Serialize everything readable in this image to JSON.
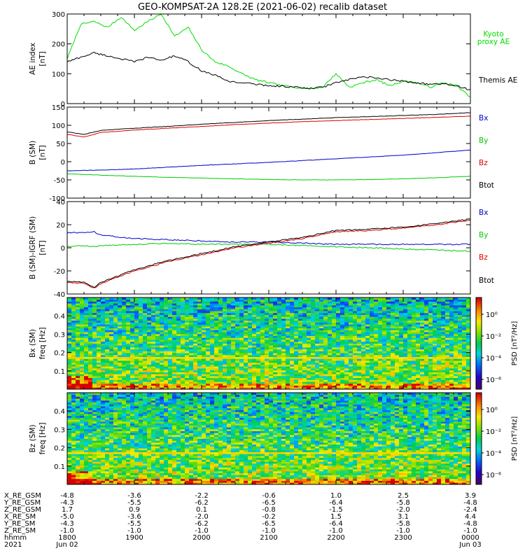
{
  "title": "GEO-KOMPSAT-2A 128.2E (2021-06-02) recalib dataset",
  "colors": {
    "bx": "#0000cc",
    "by": "#00cc00",
    "bz": "#dd0000",
    "btot": "#000000",
    "kyoto": "#00dd00",
    "themis": "#000000"
  },
  "chart_data": [
    {
      "id": "ae",
      "type": "line",
      "ylabel": "AE index",
      "yunit": "[nT]",
      "ylim": [
        0,
        300
      ],
      "yticks": [
        "0",
        "100",
        "200",
        "300"
      ],
      "x_hours": [
        18.0,
        18.2,
        18.4,
        18.6,
        18.8,
        19.0,
        19.2,
        19.4,
        19.6,
        19.8,
        20.0,
        20.2,
        20.4,
        20.6,
        20.8,
        21.0,
        21.2,
        21.4,
        21.6,
        21.8,
        22.0,
        22.2,
        22.4,
        22.6,
        22.8,
        23.0,
        23.2,
        23.4,
        23.6,
        23.8,
        24.0
      ],
      "series": [
        {
          "name": "Kyoto proxy AE",
          "color": "#00dd00",
          "values": [
            150,
            265,
            275,
            255,
            290,
            245,
            275,
            300,
            225,
            255,
            180,
            140,
            125,
            100,
            80,
            70,
            60,
            55,
            50,
            55,
            100,
            55,
            70,
            80,
            60,
            75,
            70,
            55,
            70,
            60,
            20
          ]
        },
        {
          "name": "Themis AE",
          "color": "#000000",
          "values": [
            140,
            155,
            170,
            160,
            150,
            140,
            155,
            145,
            160,
            140,
            110,
            95,
            75,
            70,
            65,
            60,
            58,
            55,
            50,
            55,
            70,
            80,
            90,
            85,
            80,
            75,
            70,
            65,
            65,
            60,
            45
          ]
        }
      ]
    },
    {
      "id": "b",
      "type": "line",
      "ylabel": "B (SM)",
      "yunit": "[nT]",
      "ylim": [
        -100,
        150
      ],
      "yticks": [
        "-100",
        "-50",
        "0",
        "50",
        "100",
        "150"
      ],
      "x_hours": [
        18.0,
        18.25,
        18.5,
        19.0,
        19.5,
        20.0,
        20.5,
        21.0,
        21.5,
        22.0,
        22.5,
        23.0,
        23.5,
        24.0
      ],
      "series": [
        {
          "name": "Bx",
          "color": "#0000cc",
          "values": [
            -25,
            -24,
            -23,
            -20,
            -15,
            -10,
            -6,
            -2,
            3,
            8,
            13,
            18,
            25,
            32
          ]
        },
        {
          "name": "By",
          "color": "#00cc00",
          "values": [
            -33,
            -35,
            -37,
            -40,
            -43,
            -45,
            -47,
            -49,
            -50,
            -50,
            -49,
            -47,
            -44,
            -40
          ]
        },
        {
          "name": "Bz",
          "color": "#dd0000",
          "values": [
            75,
            68,
            80,
            87,
            92,
            97,
            102,
            106,
            110,
            113,
            116,
            119,
            122,
            125
          ]
        },
        {
          "name": "Btot",
          "color": "#000000",
          "values": [
            82,
            75,
            86,
            92,
            97,
            103,
            108,
            113,
            117,
            121,
            124,
            127,
            130,
            135
          ]
        }
      ],
      "legend": [
        "Bx",
        "By",
        "Bz",
        "Btot"
      ]
    },
    {
      "id": "db",
      "type": "line",
      "ylabel": "B (SM)-IGRF (SM)",
      "yunit": "[nT]",
      "ylim": [
        -40,
        40
      ],
      "yticks": [
        "-40",
        "-20",
        "0",
        "20",
        "40"
      ],
      "x_hours": [
        18.0,
        18.25,
        18.4,
        18.5,
        19.0,
        19.5,
        20.0,
        20.5,
        21.0,
        21.5,
        22.0,
        22.5,
        23.0,
        23.5,
        24.0
      ],
      "series": [
        {
          "name": "Bx",
          "color": "#0000cc",
          "values": [
            13,
            13,
            14,
            11,
            8,
            7,
            6,
            5,
            5,
            4,
            3,
            3,
            3,
            3,
            3
          ]
        },
        {
          "name": "By",
          "color": "#00cc00",
          "values": [
            1,
            2,
            1,
            2,
            3,
            4,
            3,
            3,
            3,
            2,
            1,
            0,
            -1,
            -2,
            -3
          ]
        },
        {
          "name": "Bz",
          "color": "#dd0000",
          "values": [
            -30,
            -31,
            -35,
            -31,
            -20,
            -12,
            -6,
            0,
            4,
            8,
            14,
            15,
            17,
            20,
            24
          ]
        },
        {
          "name": "Btot",
          "color": "#000000",
          "values": [
            -29,
            -30,
            -34,
            -30,
            -19,
            -11,
            -5,
            1,
            5,
            9,
            15,
            16,
            18,
            21,
            25
          ]
        }
      ],
      "legend": [
        "Bx",
        "By",
        "Bz",
        "Btot"
      ]
    },
    {
      "id": "bxspec",
      "type": "heatmap",
      "ylabel": "Bx (SM)",
      "yunit": "freq [Hz]",
      "ylim": [
        0,
        0.5
      ],
      "yticks": [
        "0.1",
        "0.2",
        "0.3",
        "0.4"
      ],
      "colorbar_label": "PSD [nT²/Hz]",
      "colorbar_ticks": [
        "10⁰",
        "10⁻²",
        "10⁻⁴",
        "10⁻⁶"
      ]
    },
    {
      "id": "bzspec",
      "type": "heatmap",
      "ylabel": "Bz (SM)",
      "yunit": "freq [Hz]",
      "ylim": [
        0,
        0.5
      ],
      "yticks": [
        "0.1",
        "0.2",
        "0.3",
        "0.4"
      ],
      "colorbar_label": "PSD [nT²/Hz]",
      "colorbar_ticks": [
        "10⁰",
        "10⁻²",
        "10⁻⁴",
        "10⁻⁶"
      ]
    }
  ],
  "x_axis": {
    "hours": [
      18.0,
      19.0,
      20.0,
      21.0,
      22.0,
      23.0,
      24.0
    ],
    "rows": [
      {
        "label": "X_RE_GSM",
        "values": [
          "-4.8",
          "-3.6",
          "-2.2",
          "-0.6",
          "1.0",
          "2.5",
          "3.9"
        ]
      },
      {
        "label": "Y_RE_GSM",
        "values": [
          "-4.3",
          "-5.5",
          "-6.2",
          "-6.5",
          "-6.4",
          "-5.8",
          "-4.8"
        ]
      },
      {
        "label": "Z_RE_GSM",
        "values": [
          "1.7",
          "0.9",
          "0.1",
          "-0.8",
          "-1.5",
          "-2.0",
          "-2.4"
        ]
      },
      {
        "label": "X_RE_SM",
        "values": [
          "-5.0",
          "-3.6",
          "-2.0",
          "-0.2",
          "1.5",
          "3.1",
          "4.4"
        ]
      },
      {
        "label": "Y_RE_SM",
        "values": [
          "-4.3",
          "-5.5",
          "-6.2",
          "-6.5",
          "-6.4",
          "-5.8",
          "-4.8"
        ]
      },
      {
        "label": "Z_RE_SM",
        "values": [
          "-1.0",
          "-1.0",
          "-1.0",
          "-1.0",
          "-1.0",
          "-1.0",
          "-1.0"
        ]
      },
      {
        "label": "hhmm",
        "values": [
          "1800",
          "1900",
          "2000",
          "2100",
          "2200",
          "2300",
          "0000"
        ]
      }
    ],
    "year_label": "2021",
    "date_start": "Jun 02",
    "date_end": "Jun 03"
  }
}
